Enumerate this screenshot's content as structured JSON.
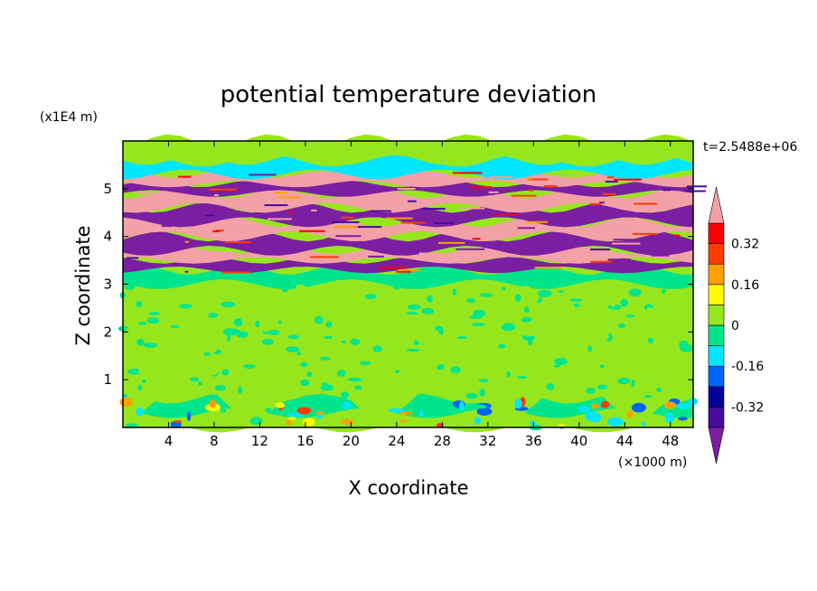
{
  "chart_data": {
    "type": "heatmap",
    "title": "potential temperature deviation",
    "xlabel": "X coordinate",
    "ylabel": "Z coordinate",
    "x_unit": "(×1000 m)",
    "y_unit": "(x1E4 m)",
    "time_label": "t=2.5488e+06",
    "xlim": [
      0,
      50
    ],
    "ylim": [
      0,
      6
    ],
    "x_ticks": [
      4,
      8,
      12,
      16,
      20,
      24,
      28,
      32,
      36,
      40,
      44,
      48
    ],
    "y_ticks": [
      1,
      2,
      3,
      4,
      5
    ],
    "colorbar": {
      "levels": [
        -0.4,
        -0.32,
        -0.24,
        -0.16,
        -0.08,
        0,
        0.08,
        0.16,
        0.24,
        0.32,
        0.4
      ],
      "tick_labels": [
        "0.32",
        "0.16",
        "0",
        "-0.16",
        "-0.32"
      ],
      "tick_values": [
        0.32,
        0.16,
        0,
        -0.16,
        -0.32
      ],
      "colors": [
        "#7b1fa2",
        "#4b0a9e",
        "#00009a",
        "#0064ff",
        "#00e6ff",
        "#00e58c",
        "#96e61e",
        "#ffff00",
        "#ffa000",
        "#ff3c00",
        "#ff0000",
        "#f2a1a7"
      ],
      "extend": "both"
    },
    "bands": [
      {
        "z": [
          0.0,
          0.3
        ],
        "level": 6
      },
      {
        "z": [
          0.3,
          0.6
        ],
        "level": 5
      },
      {
        "z": [
          0.6,
          1.8
        ],
        "level": 6
      },
      {
        "z": [
          1.8,
          3.0
        ],
        "level": 6
      },
      {
        "z": [
          3.0,
          3.3
        ],
        "level": 5
      },
      {
        "z": [
          3.3,
          3.5
        ],
        "level": 0
      },
      {
        "z": [
          3.5,
          3.7
        ],
        "level": 11
      },
      {
        "z": [
          3.7,
          4.0
        ],
        "level": 0
      },
      {
        "z": [
          4.0,
          4.3
        ],
        "level": 11
      },
      {
        "z": [
          4.3,
          4.6
        ],
        "level": 0
      },
      {
        "z": [
          4.6,
          4.9
        ],
        "level": 11
      },
      {
        "z": [
          4.9,
          5.1
        ],
        "level": 0
      },
      {
        "z": [
          5.1,
          5.3
        ],
        "level": 11
      },
      {
        "z": [
          5.3,
          5.6
        ],
        "level": 4
      },
      {
        "z": [
          5.6,
          6.0
        ],
        "level": 6
      }
    ]
  }
}
